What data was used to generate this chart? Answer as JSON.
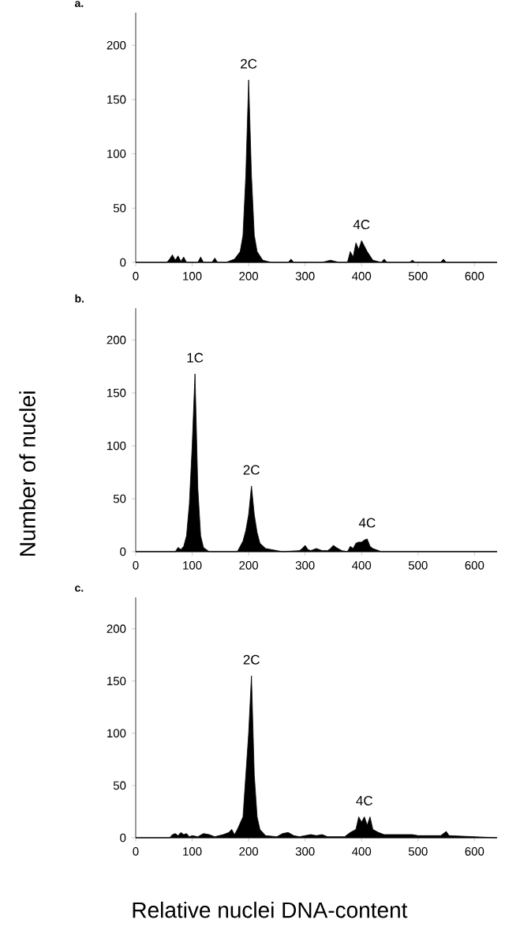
{
  "chart_data": [
    {
      "type": "area",
      "title": "a.",
      "color": "#000000",
      "xlim": [
        0,
        640
      ],
      "ylim": [
        0,
        230
      ],
      "xticks": [
        0,
        100,
        200,
        300,
        400,
        500,
        600
      ],
      "yticks": [
        0,
        50,
        100,
        150,
        200
      ],
      "x": [
        0,
        55,
        60,
        65,
        70,
        75,
        80,
        85,
        90,
        110,
        115,
        120,
        135,
        140,
        145,
        160,
        175,
        185,
        190,
        195,
        200,
        205,
        210,
        215,
        225,
        240,
        270,
        275,
        280,
        330,
        345,
        360,
        375,
        380,
        385,
        390,
        395,
        400,
        405,
        410,
        420,
        435,
        440,
        445,
        485,
        490,
        495,
        540,
        545,
        550,
        640
      ],
      "values": [
        0,
        0,
        3,
        7,
        2,
        6,
        1,
        5,
        0,
        0,
        5,
        0,
        0,
        4,
        0,
        0,
        3,
        10,
        25,
        80,
        168,
        80,
        25,
        10,
        2,
        0,
        0,
        3,
        0,
        0,
        2,
        0,
        0,
        10,
        5,
        18,
        12,
        20,
        15,
        10,
        2,
        0,
        3,
        0,
        0,
        2,
        0,
        0,
        3,
        0,
        0
      ],
      "annotations": [
        {
          "text": "2C",
          "x": 200,
          "y": 168
        },
        {
          "text": "4C",
          "x": 400,
          "y": 20
        }
      ]
    },
    {
      "type": "area",
      "title": "b.",
      "ylabel": "Number of nuclei",
      "color": "#000000",
      "xlim": [
        0,
        640
      ],
      "ylim": [
        0,
        230
      ],
      "xticks": [
        0,
        100,
        200,
        300,
        400,
        500,
        600
      ],
      "yticks": [
        0,
        50,
        100,
        150,
        200
      ],
      "x": [
        0,
        70,
        75,
        80,
        85,
        90,
        95,
        100,
        105,
        110,
        115,
        120,
        130,
        180,
        190,
        195,
        200,
        205,
        210,
        215,
        220,
        230,
        250,
        260,
        290,
        295,
        300,
        305,
        310,
        320,
        330,
        340,
        345,
        350,
        355,
        365,
        375,
        380,
        385,
        390,
        395,
        400,
        405,
        410,
        415,
        420,
        435,
        640
      ],
      "values": [
        0,
        0,
        4,
        2,
        5,
        15,
        45,
        100,
        168,
        60,
        15,
        4,
        0,
        0,
        10,
        20,
        35,
        62,
        35,
        18,
        8,
        3,
        1,
        0,
        1,
        3,
        6,
        2,
        1,
        3,
        1,
        1,
        3,
        6,
        4,
        1,
        0,
        5,
        3,
        8,
        9,
        9,
        11,
        12,
        5,
        3,
        0,
        0
      ],
      "annotations": [
        {
          "text": "1C",
          "x": 105,
          "y": 168
        },
        {
          "text": "2C",
          "x": 205,
          "y": 62
        },
        {
          "text": "4C",
          "x": 410,
          "y": 12
        }
      ]
    },
    {
      "type": "area",
      "title": "c.",
      "xlabel": "Relative nuclei DNA-content",
      "color": "#000000",
      "xlim": [
        0,
        640
      ],
      "ylim": [
        0,
        230
      ],
      "xticks": [
        0,
        100,
        200,
        300,
        400,
        500,
        600
      ],
      "yticks": [
        0,
        50,
        100,
        150,
        200
      ],
      "x": [
        0,
        60,
        65,
        70,
        75,
        80,
        85,
        90,
        95,
        100,
        110,
        120,
        130,
        140,
        155,
        165,
        170,
        175,
        180,
        190,
        195,
        200,
        205,
        210,
        215,
        220,
        230,
        250,
        260,
        270,
        280,
        290,
        300,
        310,
        320,
        330,
        340,
        370,
        380,
        390,
        395,
        400,
        405,
        410,
        415,
        420,
        430,
        440,
        480,
        490,
        500,
        540,
        545,
        550,
        555,
        640
      ],
      "values": [
        0,
        0,
        3,
        4,
        2,
        5,
        3,
        4,
        1,
        2,
        1,
        4,
        3,
        1,
        3,
        5,
        8,
        3,
        8,
        20,
        60,
        100,
        155,
        60,
        20,
        8,
        2,
        1,
        4,
        5,
        2,
        1,
        2,
        3,
        2,
        3,
        1,
        1,
        5,
        8,
        20,
        15,
        20,
        12,
        20,
        8,
        5,
        3,
        3,
        3,
        2,
        2,
        4,
        6,
        2,
        0
      ],
      "annotations": [
        {
          "text": "2C",
          "x": 205,
          "y": 155
        },
        {
          "text": "4C",
          "x": 405,
          "y": 20
        }
      ]
    }
  ]
}
